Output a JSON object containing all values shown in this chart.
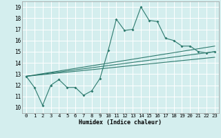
{
  "xlabel": "Humidex (Indice chaleur)",
  "bg_color": "#d4eeee",
  "grid_color": "#ffffff",
  "line_color": "#2d7a6e",
  "xlim": [
    -0.5,
    23.5
  ],
  "ylim": [
    9.5,
    19.5
  ],
  "xticks": [
    0,
    1,
    2,
    3,
    4,
    5,
    6,
    7,
    8,
    9,
    10,
    11,
    12,
    13,
    14,
    15,
    16,
    17,
    18,
    19,
    20,
    21,
    22,
    23
  ],
  "yticks": [
    10,
    11,
    12,
    13,
    14,
    15,
    16,
    17,
    18,
    19
  ],
  "series": [
    [
      0,
      12.8
    ],
    [
      1,
      11.8
    ],
    [
      2,
      10.2
    ],
    [
      3,
      12.0
    ],
    [
      4,
      12.5
    ],
    [
      5,
      11.8
    ],
    [
      6,
      11.8
    ],
    [
      7,
      11.1
    ],
    [
      8,
      11.5
    ],
    [
      9,
      12.6
    ],
    [
      10,
      15.1
    ],
    [
      11,
      17.9
    ],
    [
      12,
      16.9
    ],
    [
      13,
      17.0
    ],
    [
      14,
      19.0
    ],
    [
      15,
      17.8
    ],
    [
      16,
      17.7
    ],
    [
      17,
      16.2
    ],
    [
      18,
      16.0
    ],
    [
      19,
      15.5
    ],
    [
      20,
      15.5
    ],
    [
      21,
      15.0
    ],
    [
      22,
      14.9
    ],
    [
      23,
      15.0
    ]
  ],
  "straight_lines": [
    [
      [
        0,
        12.8
      ],
      [
        23,
        15.5
      ]
    ],
    [
      [
        0,
        12.8
      ],
      [
        23,
        15.0
      ]
    ],
    [
      [
        0,
        12.8
      ],
      [
        23,
        14.5
      ]
    ]
  ]
}
